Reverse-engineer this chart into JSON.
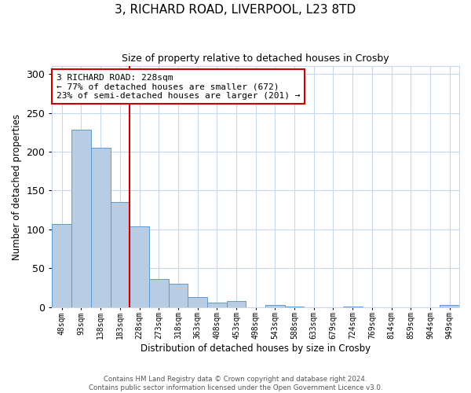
{
  "title": "3, RICHARD ROAD, LIVERPOOL, L23 8TD",
  "subtitle": "Size of property relative to detached houses in Crosby",
  "xlabel": "Distribution of detached houses by size in Crosby",
  "ylabel": "Number of detached properties",
  "bar_labels": [
    "48sqm",
    "93sqm",
    "138sqm",
    "183sqm",
    "228sqm",
    "273sqm",
    "318sqm",
    "363sqm",
    "408sqm",
    "453sqm",
    "498sqm",
    "543sqm",
    "588sqm",
    "633sqm",
    "679sqm",
    "724sqm",
    "769sqm",
    "814sqm",
    "859sqm",
    "904sqm",
    "949sqm"
  ],
  "bar_values": [
    107,
    228,
    205,
    135,
    104,
    36,
    30,
    13,
    6,
    8,
    0,
    3,
    1,
    0,
    0,
    1,
    0,
    0,
    0,
    0,
    3
  ],
  "bar_color": "#b8cce4",
  "bar_edge_color": "#5b9bd5",
  "vline_color": "#cc0000",
  "annotation_line1": "3 RICHARD ROAD: 228sqm",
  "annotation_line2": "← 77% of detached houses are smaller (672)",
  "annotation_line3": "23% of semi-detached houses are larger (201) →",
  "ylim": [
    0,
    310
  ],
  "yticks": [
    0,
    50,
    100,
    150,
    200,
    250,
    300
  ],
  "footer_text": "Contains HM Land Registry data © Crown copyright and database right 2024.\nContains public sector information licensed under the Open Government Licence v3.0.",
  "bg_color": "#ffffff",
  "grid_color": "#c8d8ea"
}
